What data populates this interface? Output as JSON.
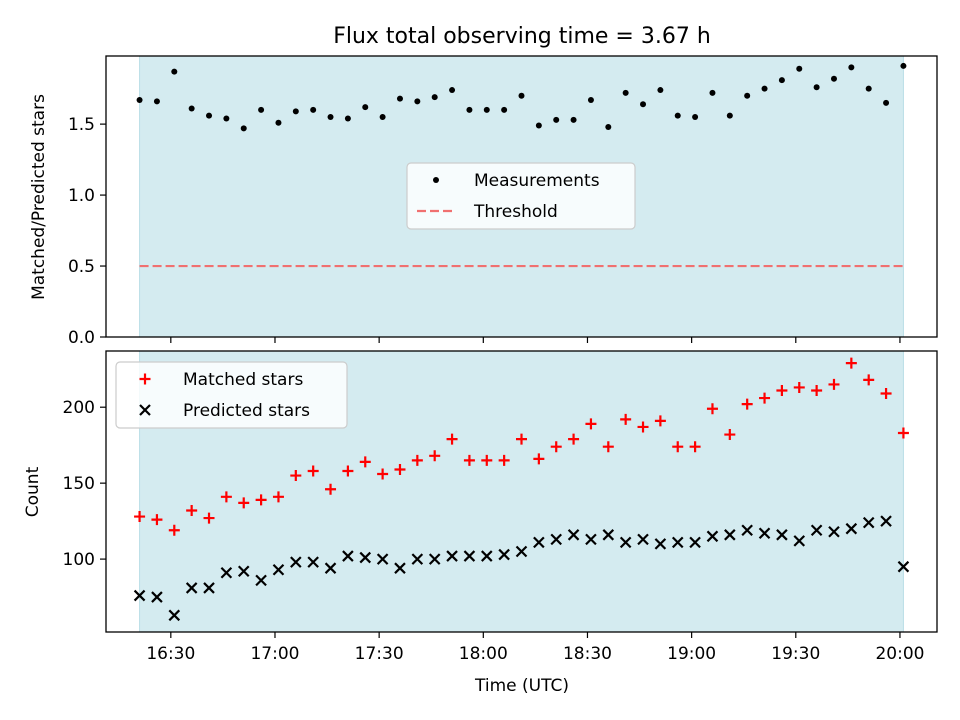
{
  "chart_data": [
    {
      "type": "scatter",
      "title": "Flux total observing time = 3.67 h",
      "xlabel": "",
      "ylabel": "Matched/Predicted stars",
      "x_ticks": [
        "16:30",
        "17:00",
        "17:30",
        "18:00",
        "18:30",
        "19:00",
        "19:30",
        "20:00"
      ],
      "y_ticks": [
        "0.0",
        "0.5",
        "1.0",
        "1.5"
      ],
      "ylim": [
        0,
        1.98
      ],
      "observing_window": [
        "16:21",
        "20:01"
      ],
      "shade_color": "#d4ebf0",
      "legend": {
        "placement": "center",
        "entries": [
          "Measurements",
          "Threshold"
        ]
      },
      "threshold": 0.5,
      "threshold_color": "#f07070",
      "series": [
        {
          "name": "Measurements",
          "marker": "dot",
          "color": "#000000",
          "points": [
            [
              "16:21",
              1.67
            ],
            [
              "16:26",
              1.66
            ],
            [
              "16:31",
              1.87
            ],
            [
              "16:36",
              1.61
            ],
            [
              "16:41",
              1.56
            ],
            [
              "16:46",
              1.54
            ],
            [
              "16:51",
              1.47
            ],
            [
              "16:56",
              1.6
            ],
            [
              "17:01",
              1.51
            ],
            [
              "17:06",
              1.59
            ],
            [
              "17:11",
              1.6
            ],
            [
              "17:16",
              1.55
            ],
            [
              "17:21",
              1.54
            ],
            [
              "17:26",
              1.62
            ],
            [
              "17:31",
              1.55
            ],
            [
              "17:36",
              1.68
            ],
            [
              "17:41",
              1.66
            ],
            [
              "17:46",
              1.69
            ],
            [
              "17:51",
              1.74
            ],
            [
              "17:56",
              1.6
            ],
            [
              "18:01",
              1.6
            ],
            [
              "18:06",
              1.6
            ],
            [
              "18:11",
              1.7
            ],
            [
              "18:16",
              1.49
            ],
            [
              "18:21",
              1.53
            ],
            [
              "18:26",
              1.53
            ],
            [
              "18:31",
              1.67
            ],
            [
              "18:36",
              1.48
            ],
            [
              "18:41",
              1.72
            ],
            [
              "18:46",
              1.64
            ],
            [
              "18:51",
              1.74
            ],
            [
              "18:56",
              1.56
            ],
            [
              "19:01",
              1.55
            ],
            [
              "19:06",
              1.72
            ],
            [
              "19:11",
              1.56
            ],
            [
              "19:16",
              1.7
            ],
            [
              "19:21",
              1.75
            ],
            [
              "19:26",
              1.81
            ],
            [
              "19:31",
              1.89
            ],
            [
              "19:36",
              1.76
            ],
            [
              "19:41",
              1.82
            ],
            [
              "19:46",
              1.9
            ],
            [
              "19:51",
              1.75
            ],
            [
              "19:56",
              1.65
            ],
            [
              "20:01",
              1.91
            ]
          ]
        }
      ]
    },
    {
      "type": "scatter",
      "title": "",
      "xlabel": "Time (UTC)",
      "ylabel": "Count",
      "x_ticks": [
        "16:30",
        "17:00",
        "17:30",
        "18:00",
        "18:30",
        "19:00",
        "19:30",
        "20:00"
      ],
      "y_ticks": [
        "100",
        "150",
        "200"
      ],
      "ylim": [
        52,
        237
      ],
      "observing_window": [
        "16:21",
        "20:01"
      ],
      "shade_color": "#d4ebf0",
      "legend": {
        "placement": "upper left",
        "entries": [
          "Matched stars",
          "Predicted stars"
        ]
      },
      "series": [
        {
          "name": "Matched stars",
          "marker": "plus",
          "color": "#ff0000",
          "points": [
            [
              "16:21",
              128
            ],
            [
              "16:26",
              126
            ],
            [
              "16:31",
              119
            ],
            [
              "16:36",
              132
            ],
            [
              "16:41",
              127
            ],
            [
              "16:46",
              141
            ],
            [
              "16:51",
              137
            ],
            [
              "16:56",
              139
            ],
            [
              "17:01",
              141
            ],
            [
              "17:06",
              155
            ],
            [
              "17:11",
              158
            ],
            [
              "17:16",
              146
            ],
            [
              "17:21",
              158
            ],
            [
              "17:26",
              164
            ],
            [
              "17:31",
              156
            ],
            [
              "17:36",
              159
            ],
            [
              "17:41",
              165
            ],
            [
              "17:46",
              168
            ],
            [
              "17:51",
              179
            ],
            [
              "17:56",
              165
            ],
            [
              "18:01",
              165
            ],
            [
              "18:06",
              165
            ],
            [
              "18:11",
              179
            ],
            [
              "18:16",
              166
            ],
            [
              "18:21",
              174
            ],
            [
              "18:26",
              179
            ],
            [
              "18:31",
              189
            ],
            [
              "18:36",
              174
            ],
            [
              "18:41",
              192
            ],
            [
              "18:46",
              187
            ],
            [
              "18:51",
              191
            ],
            [
              "18:56",
              174
            ],
            [
              "19:01",
              174
            ],
            [
              "19:06",
              199
            ],
            [
              "19:11",
              182
            ],
            [
              "19:16",
              202
            ],
            [
              "19:21",
              206
            ],
            [
              "19:26",
              211
            ],
            [
              "19:31",
              213
            ],
            [
              "19:36",
              211
            ],
            [
              "19:41",
              215
            ],
            [
              "19:46",
              229
            ],
            [
              "19:51",
              218
            ],
            [
              "19:56",
              209
            ],
            [
              "20:01",
              183
            ]
          ]
        },
        {
          "name": "Predicted stars",
          "marker": "x",
          "color": "#000000",
          "points": [
            [
              "16:21",
              76
            ],
            [
              "16:26",
              75
            ],
            [
              "16:31",
              63
            ],
            [
              "16:36",
              81
            ],
            [
              "16:41",
              81
            ],
            [
              "16:46",
              91
            ],
            [
              "16:51",
              92
            ],
            [
              "16:56",
              86
            ],
            [
              "17:01",
              93
            ],
            [
              "17:06",
              98
            ],
            [
              "17:11",
              98
            ],
            [
              "17:16",
              94
            ],
            [
              "17:21",
              102
            ],
            [
              "17:26",
              101
            ],
            [
              "17:31",
              100
            ],
            [
              "17:36",
              94
            ],
            [
              "17:41",
              100
            ],
            [
              "17:46",
              100
            ],
            [
              "17:51",
              102
            ],
            [
              "17:56",
              102
            ],
            [
              "18:01",
              102
            ],
            [
              "18:06",
              103
            ],
            [
              "18:11",
              105
            ],
            [
              "18:16",
              111
            ],
            [
              "18:21",
              113
            ],
            [
              "18:26",
              116
            ],
            [
              "18:31",
              113
            ],
            [
              "18:36",
              116
            ],
            [
              "18:41",
              111
            ],
            [
              "18:46",
              113
            ],
            [
              "18:51",
              110
            ],
            [
              "18:56",
              111
            ],
            [
              "19:01",
              111
            ],
            [
              "19:06",
              115
            ],
            [
              "19:11",
              116
            ],
            [
              "19:16",
              119
            ],
            [
              "19:21",
              117
            ],
            [
              "19:26",
              116
            ],
            [
              "19:31",
              112
            ],
            [
              "19:36",
              119
            ],
            [
              "19:41",
              118
            ],
            [
              "19:46",
              120
            ],
            [
              "19:51",
              124
            ],
            [
              "19:56",
              125
            ],
            [
              "20:01",
              95
            ]
          ]
        }
      ]
    }
  ]
}
